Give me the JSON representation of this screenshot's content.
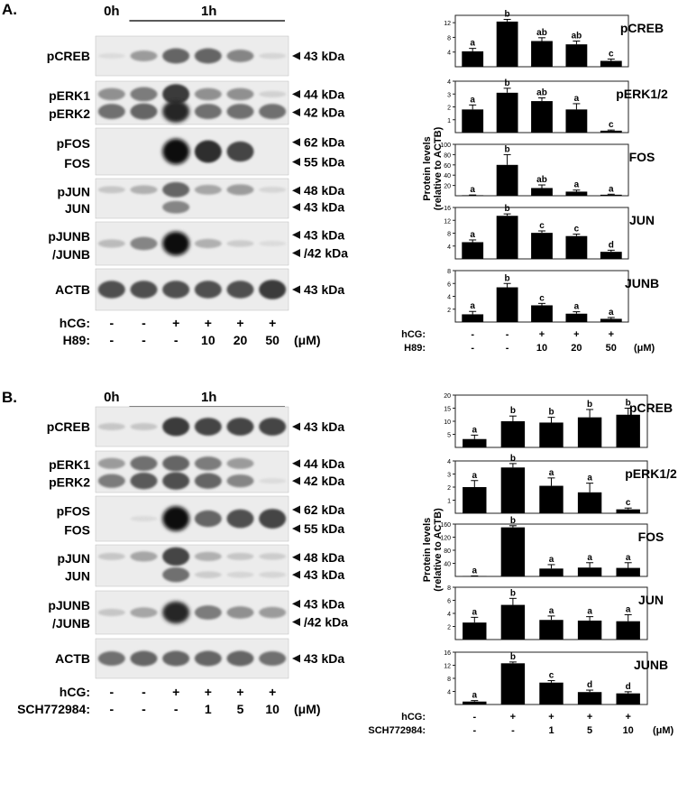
{
  "chart_data": [
    {
      "panel_label": "A.",
      "blot": {
        "time_labels": [
          "0h",
          "1h"
        ],
        "rows": [
          {
            "labels": [
              "pCREB"
            ],
            "kda": [
              "43 kDa"
            ]
          },
          {
            "labels": [
              "pERK1",
              "pERK2"
            ],
            "kda": [
              "44 kDa",
              "42 kDa"
            ]
          },
          {
            "labels": [
              "pFOS",
              "FOS"
            ],
            "kda": [
              "62 kDa",
              "55 kDa"
            ]
          },
          {
            "labels": [
              "pJUN",
              "JUN"
            ],
            "kda": [
              "48 kDa",
              "43 kDa"
            ]
          },
          {
            "labels": [
              "pJUNB",
              "/JUNB"
            ],
            "kda": [
              "43 kDa",
              "/42 kDa"
            ]
          },
          {
            "labels": [
              "ACTB"
            ],
            "kda": [
              "43 kDa"
            ]
          }
        ],
        "treatments": [
          {
            "label": "hCG:",
            "values": [
              "-",
              "-",
              "+",
              "+",
              "+",
              "+"
            ]
          },
          {
            "label": "H89:",
            "values": [
              "-",
              "-",
              "-",
              "10",
              "20",
              "50"
            ],
            "unit": "(μM)"
          }
        ]
      },
      "bar_charts": {
        "type": "bar",
        "ylabel": [
          "Protein levels",
          "(relative to ACTB)"
        ],
        "charts": [
          {
            "title": "pCREB",
            "ylim": [
              0,
              14
            ],
            "ticks": [
              "4",
              "8",
              "12"
            ],
            "tick_values": [
              4,
              8,
              12
            ],
            "values": [
              4.2,
              12.3,
              7.0,
              6.1,
              1.6
            ],
            "errors": [
              0.8,
              0.6,
              0.9,
              0.9,
              0.5
            ],
            "letters": [
              "a",
              "b",
              "ab",
              "ab",
              "c"
            ]
          },
          {
            "title": "pERK1/2",
            "ylim": [
              0,
              4
            ],
            "ticks": [
              "1",
              "2",
              "3",
              "4"
            ],
            "tick_values": [
              1,
              2,
              3,
              4
            ],
            "values": [
              1.8,
              3.1,
              2.45,
              1.8,
              0.15
            ],
            "errors": [
              0.35,
              0.35,
              0.25,
              0.45,
              0.05
            ],
            "letters": [
              "a",
              "b",
              "ab",
              "a",
              "c"
            ]
          },
          {
            "title": "FOS",
            "ylim": [
              0,
              100
            ],
            "ticks": [
              "20",
              "40",
              "60",
              "80",
              "100"
            ],
            "tick_values": [
              20,
              40,
              60,
              80,
              100
            ],
            "values": [
              1,
              60,
              15,
              8,
              2
            ],
            "errors": [
              0.5,
              20,
              6,
              3,
              1
            ],
            "letters": [
              "a",
              "b",
              "ab",
              "a",
              "a"
            ]
          },
          {
            "title": "JUN",
            "ylim": [
              0,
              16
            ],
            "ticks": [
              "4",
              "8",
              "12",
              "16"
            ],
            "tick_values": [
              4,
              8,
              12,
              16
            ],
            "values": [
              5.2,
              13.4,
              8.1,
              7.1,
              2.2
            ],
            "errors": [
              0.7,
              0.6,
              0.6,
              0.6,
              0.5
            ],
            "letters": [
              "a",
              "b",
              "c",
              "c",
              "d"
            ]
          },
          {
            "title": "JUNB",
            "ylim": [
              0,
              8
            ],
            "ticks": [
              "2",
              "4",
              "6",
              "8"
            ],
            "tick_values": [
              2,
              4,
              6,
              8
            ],
            "values": [
              1.2,
              5.4,
              2.6,
              1.3,
              0.5
            ],
            "errors": [
              0.45,
              0.6,
              0.3,
              0.3,
              0.2
            ],
            "letters": [
              "a",
              "b",
              "c",
              "a",
              "a"
            ]
          }
        ],
        "treatments": [
          {
            "label": "hCG:",
            "values": [
              "-",
              "-",
              "+",
              "+",
              "+"
            ]
          },
          {
            "label": "H89:",
            "values": [
              "-",
              "-",
              "10",
              "20",
              "50"
            ],
            "unit": "(μM)"
          }
        ]
      }
    },
    {
      "panel_label": "B.",
      "blot": {
        "time_labels": [
          "0h",
          "1h"
        ],
        "rows": [
          {
            "labels": [
              "pCREB"
            ],
            "kda": [
              "43 kDa"
            ]
          },
          {
            "labels": [
              "pERK1",
              "pERK2"
            ],
            "kda": [
              "44 kDa",
              "42 kDa"
            ]
          },
          {
            "labels": [
              "pFOS",
              "FOS"
            ],
            "kda": [
              "62 kDa",
              "55 kDa"
            ]
          },
          {
            "labels": [
              "pJUN",
              "JUN"
            ],
            "kda": [
              "48 kDa",
              "43 kDa"
            ]
          },
          {
            "labels": [
              "pJUNB",
              "/JUNB"
            ],
            "kda": [
              "43 kDa",
              "/42 kDa"
            ]
          },
          {
            "labels": [
              "ACTB"
            ],
            "kda": [
              "43 kDa"
            ]
          }
        ],
        "treatments": [
          {
            "label": "hCG:",
            "values": [
              "-",
              "-",
              "+",
              "+",
              "+",
              "+"
            ]
          },
          {
            "label": "SCH772984:",
            "values": [
              "-",
              "-",
              "-",
              "1",
              "5",
              "10"
            ],
            "unit": "(μM)"
          }
        ]
      },
      "bar_charts": {
        "type": "bar",
        "ylabel": [
          "Protein levels",
          "(relative to ACTB)"
        ],
        "charts": [
          {
            "title": "pCREB",
            "ylim": [
              0,
              20
            ],
            "ticks": [
              "5",
              "10",
              "15",
              "20"
            ],
            "tick_values": [
              5,
              10,
              15,
              20
            ],
            "values": [
              3.2,
              10.0,
              9.5,
              11.5,
              12.5
            ],
            "errors": [
              1.5,
              2.0,
              2.0,
              3.0,
              2.5
            ],
            "letters": [
              "a",
              "b",
              "b",
              "b",
              "b"
            ]
          },
          {
            "title": "pERK1/2",
            "ylim": [
              0,
              4
            ],
            "ticks": [
              "1",
              "2",
              "3",
              "4"
            ],
            "tick_values": [
              1,
              2,
              3,
              4
            ],
            "values": [
              2.0,
              3.5,
              2.1,
              1.6,
              0.3
            ],
            "errors": [
              0.5,
              0.3,
              0.6,
              0.7,
              0.1
            ],
            "letters": [
              "a",
              "b",
              "a",
              "a",
              "c"
            ]
          },
          {
            "title": "FOS",
            "ylim": [
              0,
              160
            ],
            "ticks": [
              "40",
              "80",
              "120",
              "160"
            ],
            "tick_values": [
              40,
              80,
              120,
              160
            ],
            "values": [
              1,
              150,
              24,
              27,
              26
            ],
            "errors": [
              0.5,
              5,
              12,
              15,
              16
            ],
            "letters": [
              "a",
              "b",
              "a",
              "a",
              "a"
            ]
          },
          {
            "title": "JUN",
            "ylim": [
              0,
              8
            ],
            "ticks": [
              "2",
              "4",
              "6",
              "8"
            ],
            "tick_values": [
              2,
              4,
              6,
              8
            ],
            "values": [
              2.6,
              5.3,
              3.0,
              2.9,
              2.8
            ],
            "errors": [
              0.8,
              1.0,
              0.6,
              0.6,
              1.0
            ],
            "letters": [
              "a",
              "b",
              "a",
              "a",
              "a"
            ]
          },
          {
            "title": "JUNB",
            "ylim": [
              0,
              16
            ],
            "ticks": [
              "4",
              "8",
              "12",
              "16"
            ],
            "tick_values": [
              4,
              8,
              12,
              16
            ],
            "values": [
              0.9,
              12.6,
              6.7,
              3.8,
              3.4
            ],
            "errors": [
              0.3,
              0.4,
              0.6,
              0.6,
              0.5
            ],
            "letters": [
              "a",
              "b",
              "c",
              "d",
              "d"
            ]
          }
        ],
        "treatments": [
          {
            "label": "hCG:",
            "values": [
              "-",
              "+",
              "+",
              "+",
              "+"
            ]
          },
          {
            "label": "SCH772984:",
            "values": [
              "-",
              "-",
              "1",
              "5",
              "10"
            ],
            "unit": "(μM)"
          }
        ]
      }
    }
  ]
}
